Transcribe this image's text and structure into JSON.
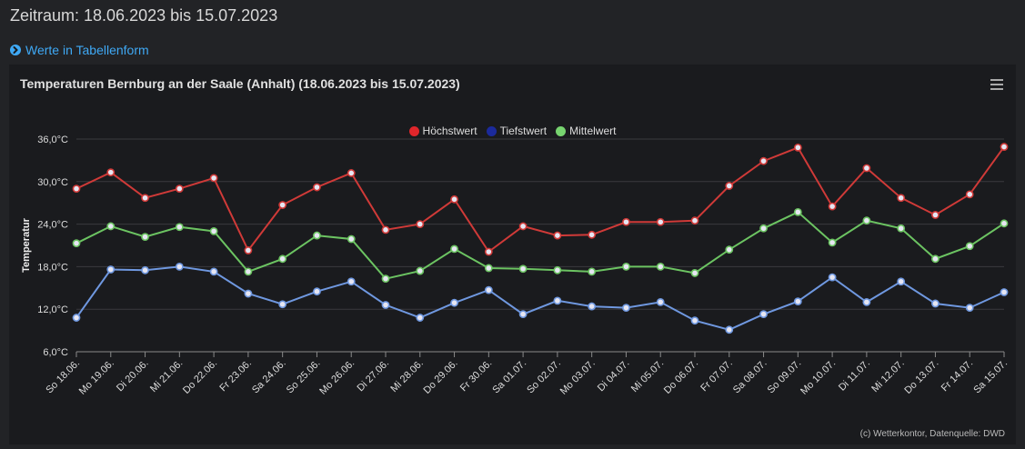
{
  "header": {
    "period": "Zeitraum: 18.06.2023 bis 15.07.2023",
    "table_link": "Werte in Tabellenform"
  },
  "chart": {
    "title": "Temperaturen Bernburg an der Saale (Anhalt) (18.06.2023 bis 15.07.2023)",
    "credits": "(c) Wetterkontor, Datenquelle: DWD"
  },
  "colors": {
    "max": "#e0262b",
    "min": "#1b2a9c",
    "mean": "#77d46f",
    "max_line": "#d03a38",
    "min_line": "#6f98e0",
    "mean_line": "#6cc462"
  },
  "chart_data": {
    "type": "line",
    "categories": [
      "So 18.06.",
      "Mo 19.06.",
      "Di 20.06.",
      "Mi 21.06.",
      "Do 22.06.",
      "Fr 23.06.",
      "Sa 24.06.",
      "So 25.06.",
      "Mo 26.06.",
      "Di 27.06.",
      "Mi 28.06.",
      "Do 29.06.",
      "Fr 30.06.",
      "Sa 01.07.",
      "So 02.07.",
      "Mo 03.07.",
      "Di 04.07.",
      "Mi 05.07.",
      "Do 06.07.",
      "Fr 07.07.",
      "Sa 08.07.",
      "So 09.07.",
      "Mo 10.07.",
      "Di 11.07.",
      "Mi 12.07.",
      "Do 13.07.",
      "Fr 14.07.",
      "Sa 15.07."
    ],
    "series": [
      {
        "name": "Höchstwert",
        "values": [
          29.0,
          31.3,
          27.7,
          29.0,
          30.5,
          20.3,
          26.7,
          29.2,
          31.2,
          23.2,
          24.0,
          27.5,
          20.1,
          23.7,
          22.4,
          22.5,
          24.3,
          24.3,
          24.5,
          29.4,
          32.9,
          34.8,
          26.5,
          31.9,
          27.7,
          25.3,
          28.2,
          34.9
        ]
      },
      {
        "name": "Tiefstwert",
        "values": [
          10.8,
          17.6,
          17.5,
          18.0,
          17.3,
          14.2,
          12.7,
          14.5,
          15.9,
          12.6,
          10.8,
          12.9,
          14.7,
          11.3,
          13.2,
          12.4,
          12.2,
          13.0,
          10.4,
          9.1,
          11.3,
          13.1,
          16.5,
          13.0,
          15.9,
          12.8,
          12.2,
          14.4
        ]
      },
      {
        "name": "Mittelwert",
        "values": [
          21.3,
          23.7,
          22.2,
          23.6,
          23.0,
          17.3,
          19.1,
          22.4,
          21.9,
          16.3,
          17.4,
          20.5,
          17.8,
          17.7,
          17.5,
          17.3,
          18.0,
          18.0,
          17.1,
          20.4,
          23.4,
          25.7,
          21.4,
          24.5,
          23.4,
          19.1,
          20.9,
          24.1
        ]
      }
    ],
    "ylabel": "Temperatur",
    "yticks": [
      "6,0°C",
      "12,0°C",
      "18,0°C",
      "24,0°C",
      "30,0°C",
      "36,0°C"
    ],
    "ylim": [
      6,
      36
    ],
    "grid": true,
    "legend": "top-center"
  }
}
